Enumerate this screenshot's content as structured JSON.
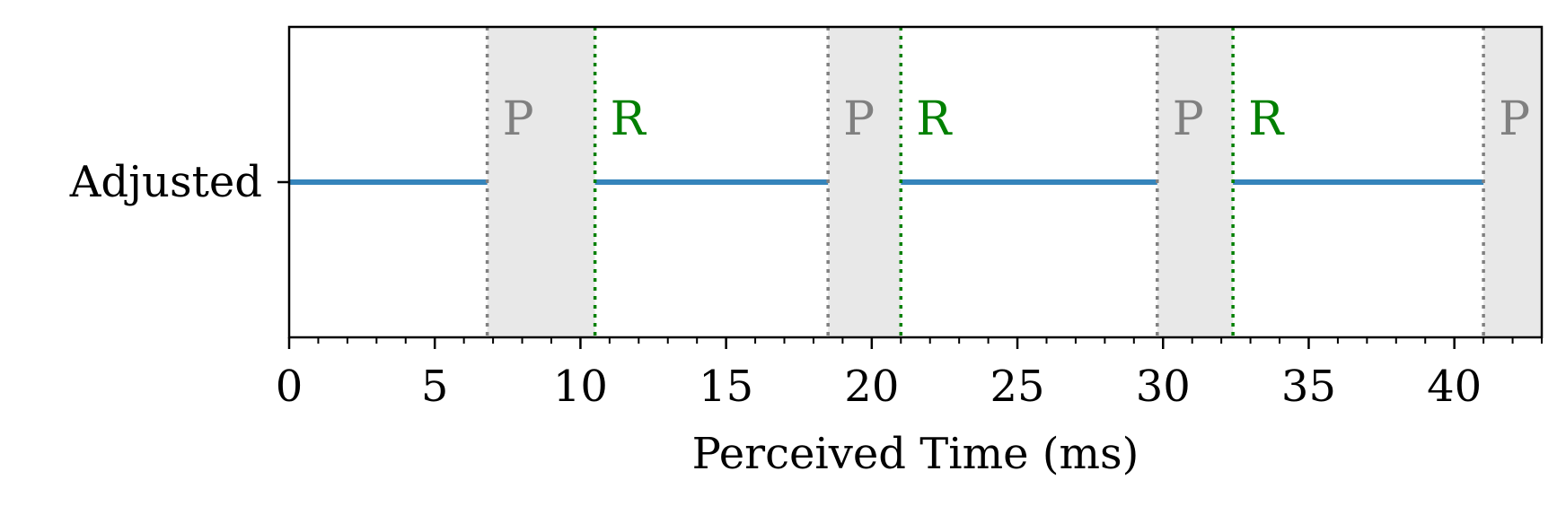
{
  "chart_data": {
    "type": "line",
    "title": "",
    "xlabel": "Perceived Time (ms)",
    "ylabel": "",
    "xlim": [
      0,
      43
    ],
    "x_major_ticks": [
      0,
      5,
      10,
      15,
      20,
      25,
      30,
      35,
      40
    ],
    "x_minor_step": 1,
    "categories": [
      "Adjusted"
    ],
    "grid": false,
    "legend": "none",
    "series": [
      {
        "category": "Adjusted",
        "color": "#1f77b4",
        "segments": [
          [
            0,
            6.8
          ],
          [
            10.5,
            18.5
          ],
          [
            21.0,
            29.8
          ],
          [
            32.4,
            41.0
          ]
        ]
      }
    ],
    "pause_regions": [
      [
        6.8,
        10.5
      ],
      [
        18.5,
        21.0
      ],
      [
        29.8,
        32.4
      ],
      [
        41.0,
        43
      ]
    ],
    "markers": [
      {
        "x": 6.8,
        "label": "P",
        "color": "#808080"
      },
      {
        "x": 10.5,
        "label": "R",
        "color": "#008000"
      },
      {
        "x": 18.5,
        "label": "P",
        "color": "#808080"
      },
      {
        "x": 21.0,
        "label": "R",
        "color": "#008000"
      },
      {
        "x": 29.8,
        "label": "P",
        "color": "#808080"
      },
      {
        "x": 32.4,
        "label": "R",
        "color": "#008000"
      },
      {
        "x": 41.0,
        "label": "P",
        "color": "#808080"
      }
    ],
    "shade_color": "#e8e8e8"
  }
}
